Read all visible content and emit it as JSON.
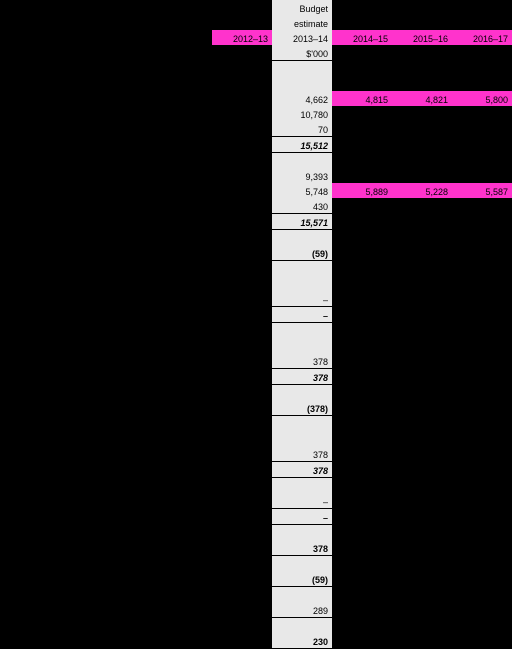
{
  "header": {
    "budget_label1": "Budget",
    "budget_label2": "estimate",
    "years": [
      "2012–13",
      "2013–14",
      "2014–15",
      "2015–16",
      "2016–17"
    ],
    "units": "$'000"
  },
  "rows": {
    "r1": {
      "c2": "4,662",
      "c3": "4,815",
      "c4": "4,821",
      "c5": "5,800"
    },
    "r2": {
      "c2": "10,780"
    },
    "r3": {
      "c2": "70"
    },
    "t1": {
      "c2": "15,512"
    },
    "r4": {
      "c2": "9,393"
    },
    "r5": {
      "c2": "5,748",
      "c3": "5,889",
      "c4": "5,228",
      "c5": "5,587"
    },
    "r6": {
      "c2": "430"
    },
    "t2": {
      "c2": "15,571"
    },
    "t3": {
      "c2": "(59)"
    },
    "d1": {
      "c2": "–"
    },
    "d2": {
      "c2": "–"
    },
    "r7": {
      "c2": "378"
    },
    "t4": {
      "c2": "378"
    },
    "t5": {
      "c2": "(378)"
    },
    "r8": {
      "c2": "378"
    },
    "t6": {
      "c2": "378"
    },
    "d3": {
      "c2": "–"
    },
    "d4": {
      "c2": "–"
    },
    "t7": {
      "c2": "378"
    },
    "t8": {
      "c2": "(59)"
    },
    "t9": {
      "c2": "289"
    },
    "t10": {
      "c2": "230"
    }
  }
}
